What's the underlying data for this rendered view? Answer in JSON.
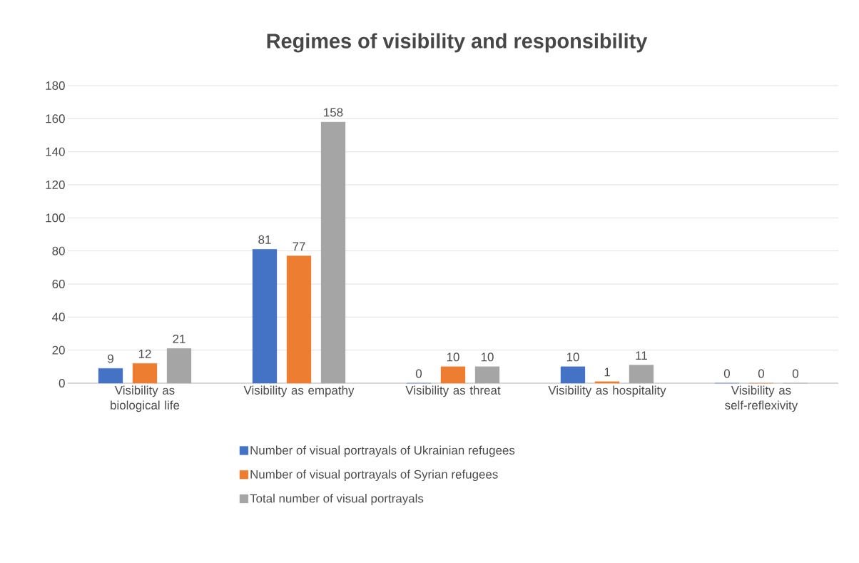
{
  "chart_data": {
    "type": "bar",
    "title": "Regimes of visibility and responsibility",
    "categories": [
      "Visibility as biological life",
      "Visibility as empathy",
      "Visibility as threat",
      "Visibility as hospitality",
      "Visibility as self-reflexivity"
    ],
    "series": [
      {
        "name": "Number of visual portrayals of Ukrainian refugees",
        "color": "#4472c4",
        "values": [
          9,
          81,
          0,
          10,
          0
        ]
      },
      {
        "name": "Number of visual portrayals of Syrian refugees",
        "color": "#ed7d31",
        "values": [
          12,
          77,
          10,
          1,
          0
        ]
      },
      {
        "name": "Total number of visual portrayals",
        "color": "#a5a5a5",
        "values": [
          21,
          158,
          10,
          11,
          0
        ]
      }
    ],
    "ylim": [
      0,
      180
    ],
    "yticks": [
      0,
      20,
      40,
      60,
      80,
      100,
      120,
      140,
      160,
      180
    ],
    "grid": "y",
    "legend": "bottom",
    "data_labels": true
  }
}
